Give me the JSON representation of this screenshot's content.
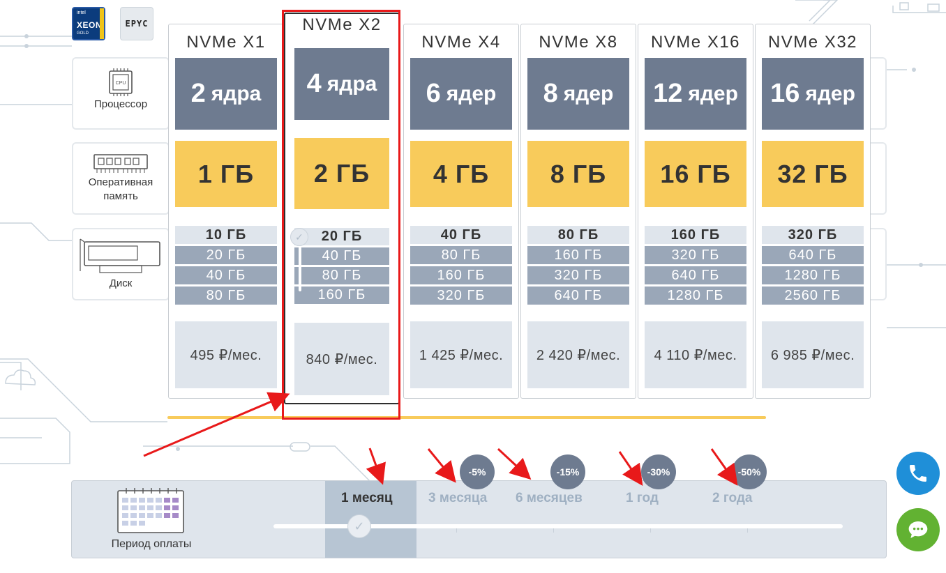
{
  "logos": {
    "intel_brand": "intel",
    "intel_product": "XEON",
    "intel_tier": "GOLD",
    "amd_product": "EPYC"
  },
  "side_labels": {
    "cpu": "Процессор",
    "cpu_chip": "CPU",
    "ram_line1": "Оперативная",
    "ram_line2": "память",
    "disk": "Диск"
  },
  "plans": [
    {
      "name": "NVMe X1",
      "cores_num": "2",
      "cores_unit": "ядра",
      "ram": "1 ГБ",
      "disks": [
        "10 ГБ",
        "20 ГБ",
        "40 ГБ",
        "80 ГБ"
      ],
      "price": "495 ₽/мес."
    },
    {
      "name": "NVMe X2",
      "cores_num": "4",
      "cores_unit": "ядра",
      "ram": "2 ГБ",
      "disks": [
        "20 ГБ",
        "40 ГБ",
        "80 ГБ",
        "160 ГБ"
      ],
      "price": "840 ₽/мес.",
      "selected": true
    },
    {
      "name": "NVMe X4",
      "cores_num": "6",
      "cores_unit": "ядер",
      "ram": "4 ГБ",
      "disks": [
        "40 ГБ",
        "80 ГБ",
        "160 ГБ",
        "320 ГБ"
      ],
      "price": "1 425 ₽/мес."
    },
    {
      "name": "NVMe X8",
      "cores_num": "8",
      "cores_unit": "ядер",
      "ram": "8 ГБ",
      "disks": [
        "80 ГБ",
        "160 ГБ",
        "320 ГБ",
        "640 ГБ"
      ],
      "price": "2 420 ₽/мес."
    },
    {
      "name": "NVMe X16",
      "cores_num": "12",
      "cores_unit": "ядер",
      "ram": "16 ГБ",
      "disks": [
        "160 ГБ",
        "320 ГБ",
        "640 ГБ",
        "1280 ГБ"
      ],
      "price": "4 110 ₽/мес."
    },
    {
      "name": "NVMe X32",
      "cores_num": "16",
      "cores_unit": "ядер",
      "ram": "32 ГБ",
      "disks": [
        "320 ГБ",
        "640 ГБ",
        "1280 ГБ",
        "2560 ГБ"
      ],
      "price": "6 985 ₽/мес."
    }
  ],
  "period": {
    "label": "Период оплаты",
    "options": [
      {
        "label": "1 месяц",
        "discount": "",
        "active": true
      },
      {
        "label": "3 месяца",
        "discount": "-5%"
      },
      {
        "label": "6 месяцев",
        "discount": "-15%"
      },
      {
        "label": "1 год",
        "discount": "-30%"
      },
      {
        "label": "2 года",
        "discount": "-50%"
      }
    ]
  },
  "checkmark": "✓",
  "icons": {
    "phone": "phone-icon",
    "chat": "chat-icon",
    "calendar": "calendar-icon",
    "cpu": "cpu-icon",
    "ram": "ram-icon",
    "disk": "disk-icon"
  },
  "colors": {
    "core_bg": "#6e7b90",
    "ram_bg": "#f8cb5b",
    "disk_bg": "#9aa7b8",
    "price_bg": "#dfe5ec",
    "annotation": "#e8191a",
    "call_button": "#1f8fd8",
    "chat_button": "#62b232"
  }
}
